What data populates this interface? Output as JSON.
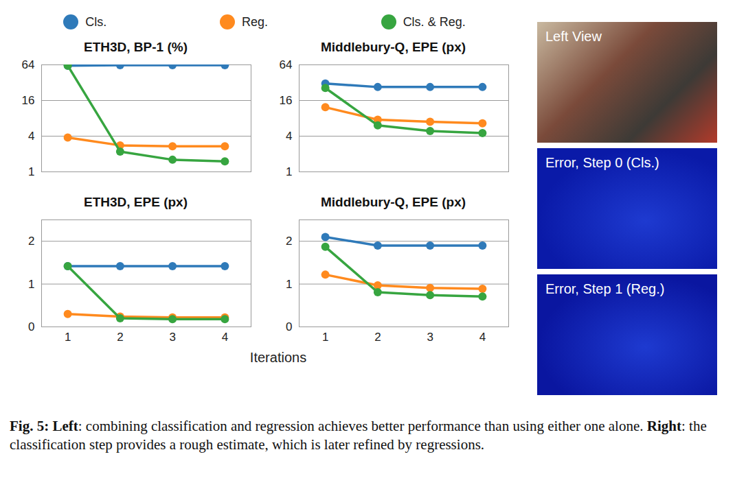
{
  "chart_data": [
    {
      "type": "line",
      "title": "ETH3D, BP-1 (%)",
      "log": "y",
      "grid": true,
      "legend": "top",
      "tick_labels": "y",
      "marker": "circle",
      "x": [
        1,
        2,
        3,
        4
      ],
      "xlim": [
        0.5,
        4.5
      ],
      "xticks": [
        1,
        2,
        3,
        4
      ],
      "ylim": [
        1,
        64
      ],
      "yticks": [
        1,
        4,
        16,
        64
      ],
      "series": [
        {
          "name": "Cls.",
          "color": "#2f7ab9",
          "values": [
            62,
            63,
            63,
            63
          ]
        },
        {
          "name": "Reg.",
          "color": "#ff8a1e",
          "values": [
            3.8,
            2.8,
            2.7,
            2.7
          ]
        },
        {
          "name": "Cls. & Reg.",
          "color": "#37a540",
          "values": [
            62,
            2.2,
            1.6,
            1.5
          ]
        }
      ]
    },
    {
      "type": "line",
      "title": "Middlebury-Q, EPE (px)",
      "log": "y",
      "grid": true,
      "tick_labels": "y",
      "marker": "circle",
      "x": [
        1,
        2,
        3,
        4
      ],
      "xlim": [
        0.5,
        4.5
      ],
      "xticks": [
        1,
        2,
        3,
        4
      ],
      "ylim": [
        1,
        64
      ],
      "yticks": [
        1,
        4,
        16,
        64
      ],
      "series": [
        {
          "name": "Cls.",
          "color": "#2f7ab9",
          "values": [
            31,
            27,
            27,
            27
          ]
        },
        {
          "name": "Reg.",
          "color": "#ff8a1e",
          "values": [
            12.3,
            7.6,
            7.0,
            6.6
          ]
        },
        {
          "name": "Cls. & Reg.",
          "color": "#37a540",
          "values": [
            26,
            6.1,
            4.9,
            4.5
          ]
        }
      ]
    },
    {
      "type": "line",
      "title": "ETH3D, EPE (px)",
      "grid": true,
      "marker": "circle",
      "x": [
        1,
        2,
        3,
        4
      ],
      "xlim": [
        0.5,
        4.5
      ],
      "xticks": [
        1,
        2,
        3,
        4
      ],
      "ylim": [
        0,
        2.5
      ],
      "yticks": [
        0,
        1,
        2
      ],
      "series": [
        {
          "name": "Cls.",
          "color": "#2f7ab9",
          "values": [
            1.42,
            1.42,
            1.42,
            1.42
          ]
        },
        {
          "name": "Reg.",
          "color": "#ff8a1e",
          "values": [
            0.3,
            0.24,
            0.22,
            0.22
          ]
        },
        {
          "name": "Cls. & Reg.",
          "color": "#37a540",
          "values": [
            1.42,
            0.2,
            0.18,
            0.18
          ]
        }
      ]
    },
    {
      "type": "line",
      "title": "Middlebury-Q, EPE (px)",
      "grid": true,
      "marker": "circle",
      "x": [
        1,
        2,
        3,
        4
      ],
      "xlim": [
        0.5,
        4.5
      ],
      "xticks": [
        1,
        2,
        3,
        4
      ],
      "ylim": [
        0,
        2.5
      ],
      "yticks": [
        0,
        1,
        2
      ],
      "series": [
        {
          "name": "Cls.",
          "color": "#2f7ab9",
          "values": [
            2.1,
            1.9,
            1.9,
            1.9
          ]
        },
        {
          "name": "Reg.",
          "color": "#ff8a1e",
          "values": [
            1.22,
            0.97,
            0.91,
            0.89
          ]
        },
        {
          "name": "Cls. & Reg.",
          "color": "#37a540",
          "values": [
            1.87,
            0.81,
            0.74,
            0.71
          ]
        }
      ]
    }
  ],
  "x_label": "Iterations",
  "images": [
    {
      "label": "Left View",
      "color": "#7a4a3a"
    },
    {
      "label": "Error, Step 0 (Cls.)",
      "color": "#0a1aa8"
    },
    {
      "label": "Error, Step 1 (Reg.)",
      "color": "#0a16a0"
    }
  ],
  "caption": [
    {
      "text": "Fig. 5: ",
      "bold": true
    },
    {
      "text": "Left",
      "bold": true
    },
    {
      "text": ": combining classification and regression achieves better performance than using either one alone. ",
      "bold": false
    },
    {
      "text": "Right",
      "bold": true
    },
    {
      "text": ": the classification step provides a rough estimate, which is later refined by regressions.",
      "bold": false
    }
  ]
}
